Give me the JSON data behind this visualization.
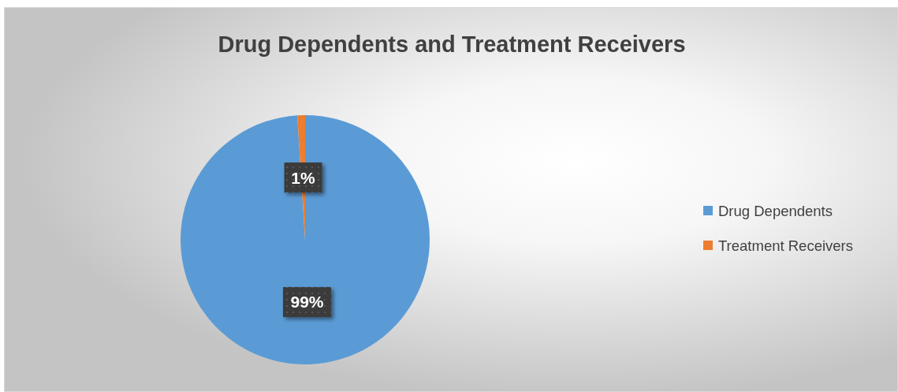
{
  "chart_data": {
    "type": "pie",
    "title": "Drug Dependents and Treatment Receivers",
    "categories": [
      "Drug Dependents",
      "Treatment Receivers"
    ],
    "values": [
      99,
      1
    ],
    "colors": [
      "#5b9bd5",
      "#ed7d31"
    ],
    "value_labels": [
      "99%",
      "1%"
    ],
    "legend": "right"
  }
}
